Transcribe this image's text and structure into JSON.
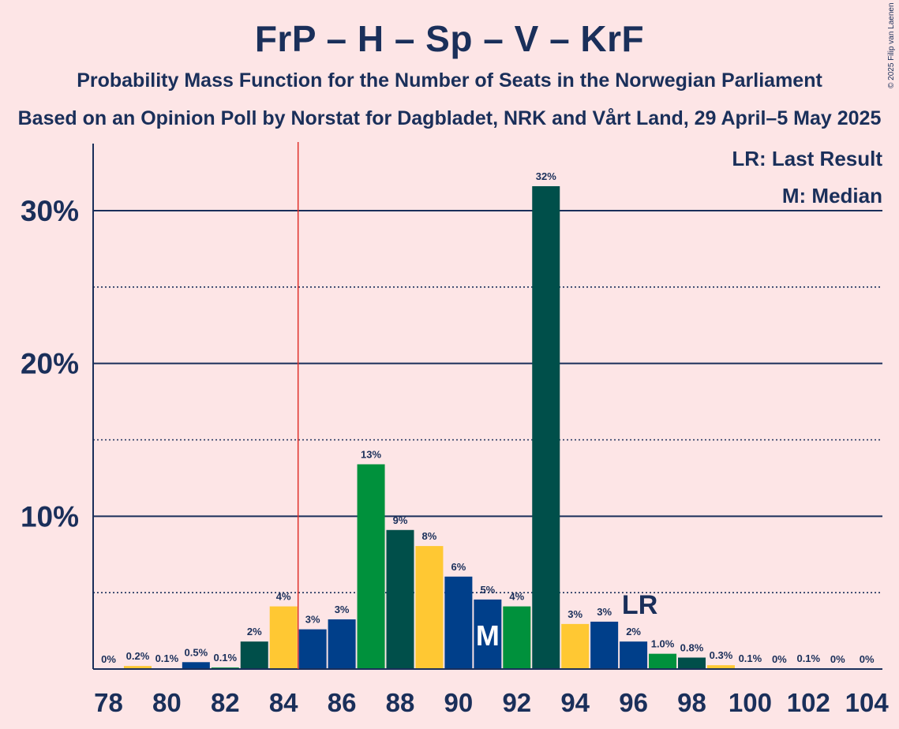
{
  "title": "FrP – H – Sp – V – KrF",
  "subtitle": "Probability Mass Function for the Number of Seats in the Norwegian Parliament",
  "caption": "Based on an Opinion Poll by Norstat for Dagbladet, NRK and Vårt Land, 29 April–5 May 2025",
  "copyright": "© 2025 Filip van Laenen",
  "legend": {
    "last_result": "LR: Last Result",
    "median": "M: Median"
  },
  "colors": {
    "background": "#fde5e6",
    "text": "#1a2f5a",
    "majority_line": "#e0302a",
    "FrP": "#003f8a",
    "H": "#004f4a",
    "KrF": "#ffc833",
    "Sp": "#00913c"
  },
  "chart_data": {
    "type": "bar",
    "xlabel": "",
    "ylabel": "",
    "ylim": [
      0,
      34.5
    ],
    "y_ticks": [
      {
        "value": 10,
        "label": "10%"
      },
      {
        "value": 20,
        "label": "20%"
      },
      {
        "value": 30,
        "label": "30%"
      }
    ],
    "y_minor_gridlines": [
      5,
      15,
      25
    ],
    "x_tick_labels": [
      "78",
      "80",
      "82",
      "84",
      "86",
      "88",
      "90",
      "92",
      "94",
      "96",
      "98",
      "100",
      "102",
      "104"
    ],
    "majority_threshold": 85,
    "last_result_seat": 96,
    "last_result_label": "LR",
    "median_seat": 91,
    "median_label": "M",
    "bars": [
      {
        "seat": 78,
        "value": 0,
        "label": "0%",
        "color": "#ffc833"
      },
      {
        "seat": 79,
        "value": 0.2,
        "label": "0.2%",
        "color": "#ffc833"
      },
      {
        "seat": 80,
        "value": 0.05,
        "label": "0.1%",
        "color": "#003f8a"
      },
      {
        "seat": 81,
        "value": 0.45,
        "label": "0.5%",
        "color": "#003f8a"
      },
      {
        "seat": 82,
        "value": 0.1,
        "label": "0.1%",
        "color": "#00913c"
      },
      {
        "seat": 83,
        "value": 1.8,
        "label": "2%",
        "color": "#004f4a"
      },
      {
        "seat": 84,
        "value": 4.1,
        "label": "4%",
        "color": "#ffc833"
      },
      {
        "seat": 85,
        "value": 2.6,
        "label": "3%",
        "color": "#003f8a"
      },
      {
        "seat": 86,
        "value": 3.25,
        "label": "3%",
        "color": "#003f8a"
      },
      {
        "seat": 87,
        "value": 13.4,
        "label": "13%",
        "color": "#00913c"
      },
      {
        "seat": 88,
        "value": 9.1,
        "label": "9%",
        "color": "#004f4a"
      },
      {
        "seat": 89,
        "value": 8.05,
        "label": "8%",
        "color": "#ffc833"
      },
      {
        "seat": 90,
        "value": 6.05,
        "label": "6%",
        "color": "#003f8a"
      },
      {
        "seat": 91,
        "value": 4.55,
        "label": "5%",
        "color": "#003f8a"
      },
      {
        "seat": 92,
        "value": 4.1,
        "label": "4%",
        "color": "#00913c"
      },
      {
        "seat": 93,
        "value": 31.6,
        "label": "32%",
        "color": "#004f4a"
      },
      {
        "seat": 94,
        "value": 2.95,
        "label": "3%",
        "color": "#ffc833"
      },
      {
        "seat": 95,
        "value": 3.1,
        "label": "3%",
        "color": "#003f8a"
      },
      {
        "seat": 96,
        "value": 1.8,
        "label": "2%",
        "color": "#003f8a"
      },
      {
        "seat": 97,
        "value": 1.0,
        "label": "1.0%",
        "color": "#00913c"
      },
      {
        "seat": 98,
        "value": 0.75,
        "label": "0.8%",
        "color": "#004f4a"
      },
      {
        "seat": 99,
        "value": 0.25,
        "label": "0.3%",
        "color": "#ffc833"
      },
      {
        "seat": 100,
        "value": 0.05,
        "label": "0.1%",
        "color": "#003f8a"
      },
      {
        "seat": 101,
        "value": 0,
        "label": "0%",
        "color": "#003f8a"
      },
      {
        "seat": 102,
        "value": 0.05,
        "label": "0.1%",
        "color": "#00913c"
      },
      {
        "seat": 103,
        "value": 0,
        "label": "0%",
        "color": "#004f4a"
      },
      {
        "seat": 104,
        "value": 0,
        "label": "0%",
        "color": "#ffc833"
      }
    ]
  }
}
